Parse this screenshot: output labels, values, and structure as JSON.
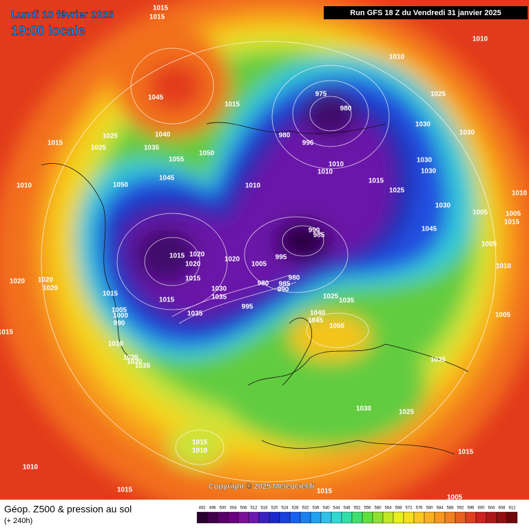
{
  "header": {
    "date": "Lundi 10 février 2025",
    "time": "19:00 locale",
    "run": "Run GFS 18 Z du Vendredi 31 janvier 2025"
  },
  "copyright": "Copyright © 2025 Meteociel.fr",
  "footer": {
    "title": "Géop. Z500 & pression au sol",
    "lead": "(+ 240h)"
  },
  "legend": {
    "levels": [
      492,
      496,
      500,
      504,
      508,
      512,
      516,
      520,
      524,
      528,
      532,
      536,
      540,
      544,
      548,
      552,
      556,
      560,
      564,
      568,
      572,
      576,
      580,
      584,
      588,
      592,
      596,
      600,
      604,
      608,
      612
    ]
  },
  "pressure_labels": [
    "1015",
    "1015",
    "1045",
    "1015",
    "1025",
    "1025",
    "1015",
    "1010",
    "1040",
    "1035",
    "1055",
    "1050",
    "1045",
    "1050",
    "1010",
    "1010",
    "1010",
    "1025",
    "1030",
    "1030",
    "1030",
    "1030",
    "1025",
    "1015",
    "1030",
    "1045",
    "1005",
    "1010",
    "1005",
    "1015",
    "1005",
    "1010",
    "1005",
    "975",
    "980",
    "980",
    "996",
    "1010",
    "1010",
    "990",
    "985",
    "995",
    "1005",
    "980",
    "985",
    "990",
    "980",
    "1020",
    "1015",
    "1020",
    "1020",
    "1015",
    "1020",
    "1020",
    "1020",
    "1015",
    "1015",
    "1030",
    "1035",
    "995",
    "1035",
    "1005",
    "1000",
    "990",
    "1010",
    "1015",
    "1035",
    "1030",
    "1035",
    "1040",
    "1045",
    "1050",
    "1025",
    "1035",
    "1035",
    "1030",
    "1025",
    "1015",
    "1010",
    "1010",
    "1015",
    "1015",
    "1005",
    "1015"
  ]
}
